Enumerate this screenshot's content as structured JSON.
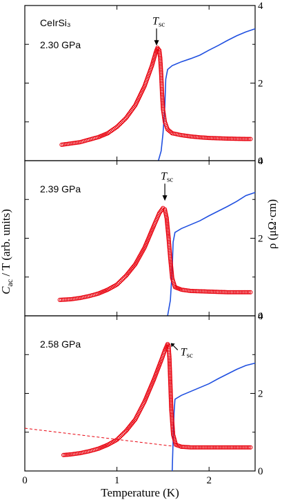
{
  "chart_data": [
    {
      "type": "scatter+line",
      "compound": "CeIrSi₃",
      "pressure_label": "2.30 GPa",
      "tsc_label": "T",
      "tsc_sub": "sc",
      "tsc_x": 1.43,
      "tsc_y": 0.82,
      "x_range": [
        0,
        2.5
      ],
      "c_range": [
        0,
        1
      ],
      "rho_range": [
        0,
        4
      ],
      "rho_ticks": [
        "0",
        "2",
        "4"
      ],
      "cac_series": {
        "name": "Cac/T",
        "color": "#e8000d",
        "points": [
          [
            0.4,
            0.06
          ],
          [
            0.5,
            0.07
          ],
          [
            0.6,
            0.08
          ],
          [
            0.7,
            0.1
          ],
          [
            0.8,
            0.12
          ],
          [
            0.9,
            0.15
          ],
          [
            1.0,
            0.2
          ],
          [
            1.1,
            0.27
          ],
          [
            1.2,
            0.37
          ],
          [
            1.3,
            0.52
          ],
          [
            1.38,
            0.68
          ],
          [
            1.42,
            0.78
          ],
          [
            1.44,
            0.82
          ],
          [
            1.46,
            0.8
          ],
          [
            1.47,
            0.74
          ],
          [
            1.48,
            0.62
          ],
          [
            1.49,
            0.46
          ],
          [
            1.5,
            0.34
          ],
          [
            1.52,
            0.24
          ],
          [
            1.55,
            0.18
          ],
          [
            1.6,
            0.15
          ],
          [
            1.7,
            0.135
          ],
          [
            1.8,
            0.125
          ],
          [
            1.9,
            0.118
          ],
          [
            2.0,
            0.113
          ],
          [
            2.2,
            0.108
          ],
          [
            2.4,
            0.105
          ],
          [
            2.45,
            0.105
          ]
        ]
      },
      "rho_series": {
        "name": "ρ",
        "color": "#1f4fe0",
        "points": [
          [
            1.45,
            0.0
          ],
          [
            1.48,
            0.25
          ],
          [
            1.5,
            0.7
          ],
          [
            1.52,
            1.4
          ],
          [
            1.53,
            2.1
          ],
          [
            1.55,
            2.35
          ],
          [
            1.6,
            2.45
          ],
          [
            1.7,
            2.55
          ],
          [
            1.8,
            2.63
          ],
          [
            1.9,
            2.72
          ],
          [
            2.0,
            2.85
          ],
          [
            2.1,
            2.97
          ],
          [
            2.2,
            3.1
          ],
          [
            2.3,
            3.22
          ],
          [
            2.4,
            3.32
          ],
          [
            2.5,
            3.4
          ]
        ]
      }
    },
    {
      "type": "scatter+line",
      "pressure_label": "2.39 GPa",
      "tsc_label": "T",
      "tsc_sub": "sc",
      "tsc_x": 1.52,
      "tsc_y": 0.82,
      "x_range": [
        0,
        2.5
      ],
      "c_range": [
        0,
        1
      ],
      "rho_range": [
        0,
        4
      ],
      "rho_ticks": [
        "0",
        "2",
        "4"
      ],
      "cac_series": {
        "name": "Cac/T",
        "color": "#e8000d",
        "points": [
          [
            0.38,
            0.06
          ],
          [
            0.5,
            0.065
          ],
          [
            0.6,
            0.075
          ],
          [
            0.7,
            0.09
          ],
          [
            0.8,
            0.11
          ],
          [
            0.9,
            0.14
          ],
          [
            1.0,
            0.18
          ],
          [
            1.1,
            0.25
          ],
          [
            1.2,
            0.34
          ],
          [
            1.3,
            0.47
          ],
          [
            1.4,
            0.64
          ],
          [
            1.46,
            0.74
          ],
          [
            1.5,
            0.78
          ],
          [
            1.52,
            0.77
          ],
          [
            1.54,
            0.7
          ],
          [
            1.56,
            0.55
          ],
          [
            1.58,
            0.38
          ],
          [
            1.6,
            0.23
          ],
          [
            1.63,
            0.16
          ],
          [
            1.7,
            0.14
          ],
          [
            1.8,
            0.13
          ],
          [
            2.0,
            0.125
          ],
          [
            2.2,
            0.12
          ],
          [
            2.4,
            0.12
          ],
          [
            2.45,
            0.12
          ]
        ]
      },
      "rho_series": {
        "name": "ρ",
        "color": "#1f4fe0",
        "points": [
          [
            1.55,
            0.0
          ],
          [
            1.58,
            0.4
          ],
          [
            1.6,
            1.2
          ],
          [
            1.61,
            1.9
          ],
          [
            1.63,
            2.15
          ],
          [
            1.7,
            2.25
          ],
          [
            1.8,
            2.35
          ],
          [
            1.9,
            2.45
          ],
          [
            2.0,
            2.58
          ],
          [
            2.1,
            2.7
          ],
          [
            2.2,
            2.82
          ],
          [
            2.3,
            2.95
          ],
          [
            2.4,
            3.1
          ],
          [
            2.5,
            3.18
          ]
        ]
      }
    },
    {
      "type": "scatter+line",
      "pressure_label": "2.58 GPa",
      "tsc_label": "T",
      "tsc_sub": "sc",
      "tsc_x": 1.57,
      "tsc_y": 0.97,
      "x_range": [
        0,
        2.5
      ],
      "c_range": [
        0,
        1
      ],
      "rho_range": [
        0,
        4
      ],
      "rho_ticks": [
        "0",
        "2",
        "4"
      ],
      "cac_series": {
        "name": "Cac/T",
        "color": "#e8000d",
        "points": [
          [
            0.42,
            0.06
          ],
          [
            0.5,
            0.065
          ],
          [
            0.6,
            0.075
          ],
          [
            0.7,
            0.09
          ],
          [
            0.8,
            0.11
          ],
          [
            0.9,
            0.14
          ],
          [
            1.0,
            0.18
          ],
          [
            1.1,
            0.25
          ],
          [
            1.2,
            0.34
          ],
          [
            1.3,
            0.48
          ],
          [
            1.4,
            0.65
          ],
          [
            1.48,
            0.8
          ],
          [
            1.52,
            0.88
          ],
          [
            1.55,
            0.93
          ],
          [
            1.56,
            0.92
          ],
          [
            1.57,
            0.82
          ],
          [
            1.58,
            0.62
          ],
          [
            1.59,
            0.42
          ],
          [
            1.61,
            0.22
          ],
          [
            1.64,
            0.14
          ],
          [
            1.7,
            0.125
          ],
          [
            1.8,
            0.12
          ],
          [
            2.0,
            0.12
          ],
          [
            2.2,
            0.12
          ],
          [
            2.4,
            0.12
          ],
          [
            2.45,
            0.12
          ]
        ]
      },
      "baseline_series": {
        "name": "dashed",
        "color": "#e8000d",
        "points": [
          [
            0.0,
            0.27
          ],
          [
            1.6,
            0.13
          ]
        ]
      },
      "rho_series": {
        "name": "ρ",
        "color": "#1f4fe0",
        "points": [
          [
            1.6,
            0.0
          ],
          [
            1.61,
            0.8
          ],
          [
            1.62,
            1.5
          ],
          [
            1.63,
            1.85
          ],
          [
            1.7,
            1.95
          ],
          [
            1.8,
            2.05
          ],
          [
            1.9,
            2.15
          ],
          [
            2.0,
            2.25
          ],
          [
            2.1,
            2.38
          ],
          [
            2.2,
            2.5
          ],
          [
            2.3,
            2.62
          ],
          [
            2.4,
            2.72
          ],
          [
            2.5,
            2.78
          ]
        ]
      }
    }
  ],
  "axes": {
    "x_ticks": [
      "0",
      "1",
      "2"
    ],
    "x_tick_values": [
      0,
      1,
      2
    ],
    "xlabel": "Temperature (K)",
    "ylabel_left": "C",
    "ylabel_left_sub": "ac",
    "ylabel_left_rest": " / T (arb. units)",
    "ylabel_right": "ρ (μΩ·cm)"
  }
}
